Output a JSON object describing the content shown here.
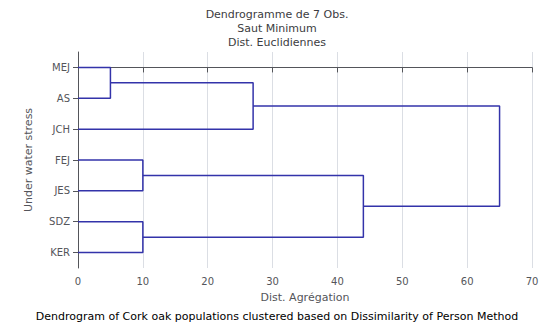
{
  "chart_data": {
    "type": "dendrogram",
    "title": "Dendrogramme de 7 Obs.\nSaut Minimum\nDist. Euclidiennes",
    "x_label": "Dist. Agrégation",
    "y_label": "Under water stress",
    "caption": "Dendrogram of Cork oak populations clustered based on Dissimilarity of Person Method",
    "categories": [
      "MEJ",
      "AS",
      "JCH",
      "FEJ",
      "JES",
      "SDZ",
      "KER"
    ],
    "merges": [
      [
        0,
        1,
        5
      ],
      [
        7,
        2,
        27
      ],
      [
        3,
        4,
        10
      ],
      [
        5,
        6,
        10
      ],
      [
        9,
        10,
        44
      ],
      [
        8,
        11,
        65
      ]
    ],
    "color": "#3333aa",
    "xlim": [
      0,
      70
    ],
    "xticks": [
      0,
      10,
      20,
      30,
      40,
      50,
      60,
      70
    ],
    "grid": "x"
  }
}
